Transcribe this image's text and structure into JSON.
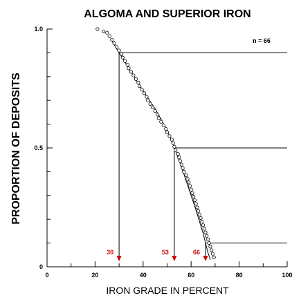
{
  "chart_data": {
    "type": "scatter",
    "title": "ALGOMA AND SUPERIOR IRON",
    "xlabel": "IRON GRADE IN PERCENT",
    "ylabel": "PROPORTION OF DEPOSITS",
    "xlim": [
      0,
      100
    ],
    "ylim": [
      0,
      1
    ],
    "x_ticks": [
      "0",
      "20",
      "40",
      "60",
      "80",
      "100"
    ],
    "y_ticks": [
      "0",
      "0.5",
      "1.0"
    ],
    "annotation": "n = 66",
    "grid": false,
    "points": [
      [
        21.0,
        1.0
      ],
      [
        23.5,
        0.99
      ],
      [
        25.0,
        0.985
      ],
      [
        26.0,
        0.97
      ],
      [
        27.0,
        0.955
      ],
      [
        28.0,
        0.94
      ],
      [
        29.0,
        0.925
      ],
      [
        30.0,
        0.91
      ],
      [
        31.0,
        0.895
      ],
      [
        31.5,
        0.88
      ],
      [
        32.5,
        0.865
      ],
      [
        33.5,
        0.85
      ],
      [
        34.0,
        0.835
      ],
      [
        35.0,
        0.82
      ],
      [
        36.0,
        0.805
      ],
      [
        37.0,
        0.79
      ],
      [
        38.0,
        0.775
      ],
      [
        38.5,
        0.76
      ],
      [
        39.5,
        0.745
      ],
      [
        40.5,
        0.73
      ],
      [
        41.5,
        0.715
      ],
      [
        42.0,
        0.7
      ],
      [
        43.0,
        0.685
      ],
      [
        44.0,
        0.67
      ],
      [
        45.0,
        0.655
      ],
      [
        46.0,
        0.64
      ],
      [
        46.5,
        0.625
      ],
      [
        47.5,
        0.61
      ],
      [
        48.5,
        0.595
      ],
      [
        49.5,
        0.58
      ],
      [
        50.0,
        0.565
      ],
      [
        51.0,
        0.55
      ],
      [
        52.0,
        0.535
      ],
      [
        52.5,
        0.52
      ],
      [
        53.0,
        0.505
      ],
      [
        53.5,
        0.49
      ],
      [
        54.5,
        0.475
      ],
      [
        55.0,
        0.46
      ],
      [
        55.5,
        0.445
      ],
      [
        56.0,
        0.43
      ],
      [
        56.5,
        0.415
      ],
      [
        57.0,
        0.4
      ],
      [
        58.0,
        0.385
      ],
      [
        58.5,
        0.37
      ],
      [
        59.0,
        0.355
      ],
      [
        59.5,
        0.34
      ],
      [
        60.0,
        0.325
      ],
      [
        60.5,
        0.31
      ],
      [
        61.0,
        0.295
      ],
      [
        61.5,
        0.28
      ],
      [
        62.0,
        0.265
      ],
      [
        62.5,
        0.25
      ],
      [
        63.0,
        0.235
      ],
      [
        63.5,
        0.22
      ],
      [
        64.0,
        0.205
      ],
      [
        64.5,
        0.19
      ],
      [
        65.0,
        0.175
      ],
      [
        65.5,
        0.16
      ],
      [
        66.0,
        0.145
      ],
      [
        66.5,
        0.13
      ],
      [
        67.0,
        0.115
      ],
      [
        67.5,
        0.1
      ],
      [
        68.0,
        0.085
      ],
      [
        68.5,
        0.07
      ],
      [
        69.0,
        0.055
      ],
      [
        69.5,
        0.04
      ]
    ],
    "fitted_curve": [
      [
        27,
        0.95
      ],
      [
        30,
        0.9
      ],
      [
        35,
        0.82
      ],
      [
        40,
        0.74
      ],
      [
        45,
        0.665
      ],
      [
        50,
        0.575
      ],
      [
        53,
        0.5
      ],
      [
        56,
        0.42
      ],
      [
        59,
        0.33
      ],
      [
        62,
        0.24
      ],
      [
        65,
        0.14
      ],
      [
        66,
        0.1
      ],
      [
        67,
        0.06
      ],
      [
        68,
        0.03
      ]
    ],
    "percentile_markers": [
      {
        "label": "30",
        "x": 30,
        "y": 0.9
      },
      {
        "label": "53",
        "x": 53,
        "y": 0.5
      },
      {
        "label": "66",
        "x": 66,
        "y": 0.1
      }
    ],
    "colors": {
      "axis": "#000000",
      "marker": "#cc0000",
      "curve": "#000000"
    }
  }
}
